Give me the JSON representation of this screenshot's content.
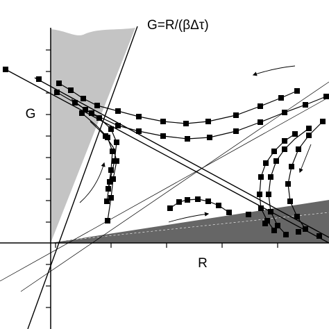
{
  "annotation": "G=R/(βΔτ)",
  "y_axis_label": "G",
  "x_axis_label": "R"
}
